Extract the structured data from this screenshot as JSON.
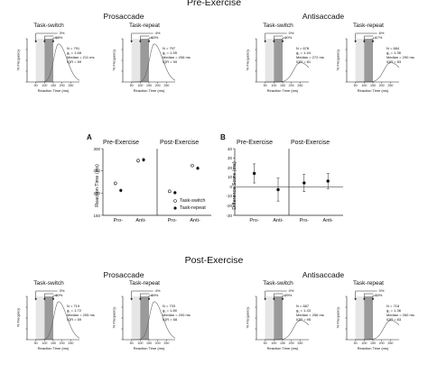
{
  "title_pre": "Pre-Exercise",
  "title_post": "Post-Exercise",
  "prosaccade_label": "Prosaccade",
  "antisaccade_label": "Antisaccade",
  "task_switch_label": "Task-switch",
  "task_repeat_label": "Task-repeat",
  "hist_ylabel": "% Frequency",
  "hist_ylabel_alt": "% Frequncy",
  "hist_xlabel": "Reaction Time (ms)",
  "hist_xticks": [
    "50",
    "100",
    "150",
    "200",
    "250"
  ],
  "panels": [
    {
      "id": "pre-pro-switch",
      "pct_top": "3%",
      "pct_bottom": "58%",
      "n": "N = 791",
      "g": "g₁ = 1.68",
      "median": "Median = 211 ms",
      "iqr": "IQR = 59"
    },
    {
      "id": "pre-pro-repeat",
      "pct_top": "4%",
      "pct_bottom": "63%",
      "n": "N = 797",
      "g": "g₁ = 1.55",
      "median": "Median = 206 ms",
      "iqr": "IQR = 59"
    },
    {
      "id": "pre-anti-switch",
      "pct_top": "0%",
      "pct_bottom": "20%",
      "n": "N = 678",
      "g": "g₁ = 1.44",
      "median": "Median = 272 ms",
      "iqr": "IQR = 81"
    },
    {
      "id": "pre-anti-repeat",
      "pct_top": "6%",
      "pct_bottom": "17%",
      "n": "N = 684",
      "g": "g₁ = 1.36",
      "median": "Median = 290 ms",
      "iqr": "IQR = 83"
    },
    {
      "id": "post-pro-switch",
      "pct_top": "3%",
      "pct_bottom": "60%",
      "n": "N = 719",
      "g": "g₁ = 1.72",
      "median": "Median = 205 ms",
      "iqr": "IQR = 59"
    },
    {
      "id": "post-pro-repeat",
      "pct_top": "4%",
      "pct_bottom": "69%",
      "n": "N = 733",
      "g": "g₁ = 1.80",
      "median": "Median = 200 ms",
      "iqr": "IQR = 58"
    },
    {
      "id": "post-anti-switch",
      "pct_top": "0%",
      "pct_bottom": "29%",
      "n": "N = 687",
      "g": "g₁ = 1.43",
      "median": "Median = 256 ms",
      "iqr": "IQR = 95"
    },
    {
      "id": "post-anti-repeat",
      "pct_top": "0%",
      "pct_bottom": "33%",
      "n": "N = 718",
      "g": "g₁ = 1.36",
      "median": "Median = 260 ms",
      "iqr": "IQR = 83"
    }
  ],
  "panel_a": {
    "letter": "A",
    "ylabel": "Reaction Time (ms)",
    "yticks": [
      "150",
      "200",
      "250",
      "300"
    ],
    "pre_label": "Pre-Exercise",
    "post_label": "Post-Exercise",
    "xticks": [
      "Pro-",
      "Anti-",
      "Pro-",
      "Anti-"
    ],
    "legend_switch": "Task-switch",
    "legend_repeat": "Task-repeat"
  },
  "panel_b": {
    "letter": "B",
    "ylabel": "Difference Score (ms)",
    "yticks": [
      "-30",
      "-20",
      "-10",
      "0",
      "10",
      "20",
      "30",
      "40"
    ],
    "pre_label": "Pre-Exercise",
    "post_label": "Post-Exercise",
    "xticks": [
      "Pro-",
      "Anti-",
      "Pro-",
      "Anti-"
    ]
  },
  "chart_data": [
    {
      "type": "scatter",
      "title": "",
      "ylabel": "Reaction Time (ms)",
      "ylim": [
        150,
        300
      ],
      "categories": [
        "Pre Pro-",
        "Pre Anti-",
        "Post Pro-",
        "Post Anti-"
      ],
      "series": [
        {
          "name": "Task-switch",
          "values": [
            222,
            273,
            204,
            262
          ]
        },
        {
          "name": "Task-repeat",
          "values": [
            206,
            275,
            201,
            256
          ]
        }
      ],
      "errors": [
        [
          4,
          5,
          4,
          4
        ],
        [
          4,
          5,
          4,
          4
        ]
      ],
      "legend": "bottom-right"
    },
    {
      "type": "scatter",
      "title": "",
      "ylabel": "Difference Score (ms)",
      "ylim": [
        -30,
        40
      ],
      "categories": [
        "Pre Pro-",
        "Pre Anti-",
        "Post Pro-",
        "Post Anti-"
      ],
      "series": [
        {
          "values": [
            14,
            -3,
            4,
            6
          ]
        }
      ],
      "errors": [
        [
          10,
          12,
          9,
          8
        ]
      ],
      "reference_line": 0
    }
  ]
}
